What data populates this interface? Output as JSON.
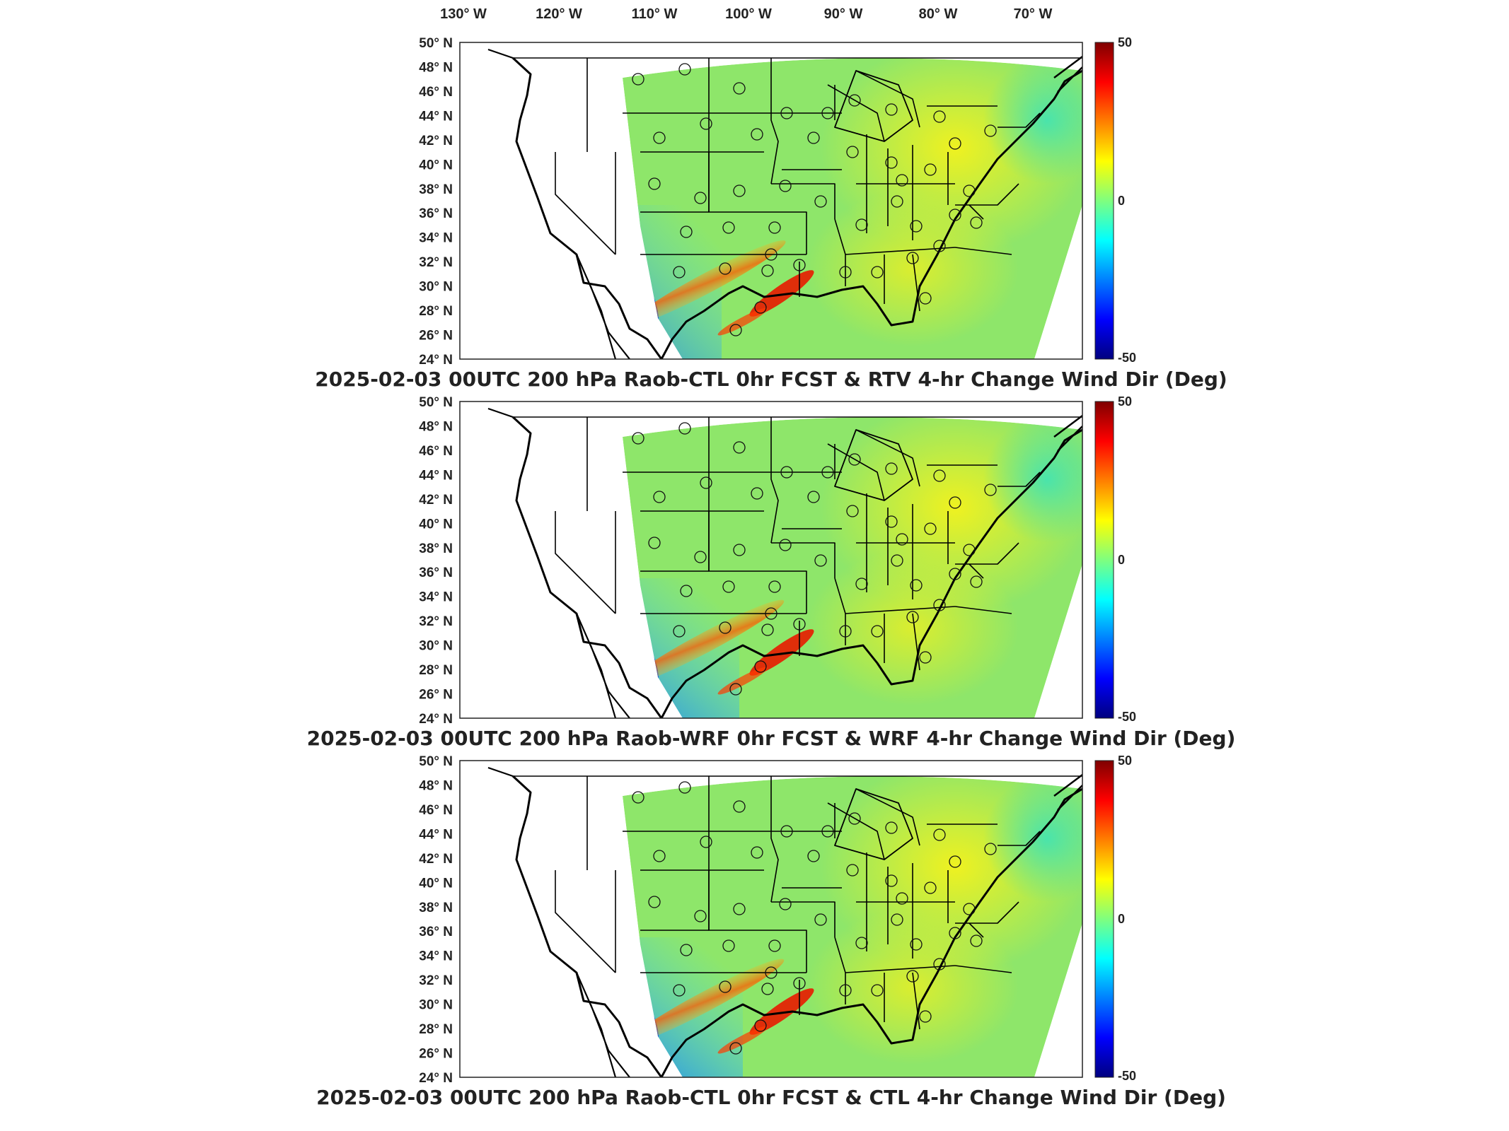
{
  "figure": {
    "top_longitude_labels": [
      "130° W",
      "120° W",
      "110° W",
      "100° W",
      "90° W",
      "80° W",
      "70° W"
    ],
    "latitude_labels": [
      "50° N",
      "48° N",
      "46° N",
      "44° N",
      "42° N",
      "40° N",
      "38° N",
      "36° N",
      "34° N",
      "32° N",
      "30° N",
      "28° N",
      "26° N",
      "24° N"
    ],
    "panels": [
      {
        "title": "2025-02-03 00UTC 200 hPa Raob-CTL 0hr FCST & RTV 4-hr Change Wind Dir (Deg)",
        "colorbar_ticks": [
          "50",
          "0",
          "-50"
        ],
        "colorbar_range": [
          -50,
          50
        ]
      },
      {
        "title": "2025-02-03 00UTC 200 hPa Raob-WRF 0hr FCST & WRF 4-hr Change Wind Dir (Deg)",
        "colorbar_ticks": [
          "50",
          "0",
          "-50"
        ],
        "colorbar_range": [
          -50,
          50
        ]
      },
      {
        "title": "2025-02-03 00UTC 200 hPa Raob-CTL 0hr FCST & CTL 4-hr Change Wind Dir (Deg)",
        "colorbar_ticks": [
          "50",
          "0",
          "-50"
        ],
        "colorbar_range": [
          -50,
          50
        ]
      }
    ],
    "colormap": [
      "#00007f",
      "#0000ff",
      "#007fff",
      "#00ffff",
      "#7fff7f",
      "#ffff00",
      "#ff7f00",
      "#ff0000",
      "#7f0000"
    ],
    "field_color": "#8ee66a",
    "map_extent": {
      "lon": [
        -135,
        -62
      ],
      "lat": [
        24,
        50
      ]
    }
  }
}
